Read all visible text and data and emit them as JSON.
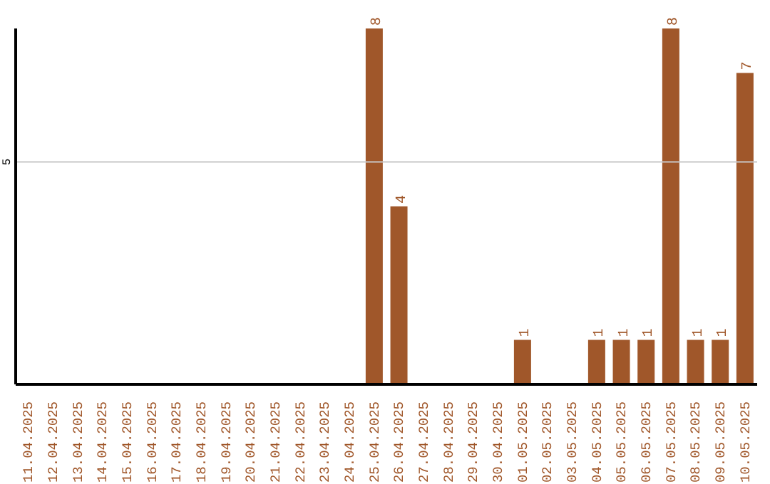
{
  "chart_data": {
    "type": "bar",
    "categories": [
      "11.04.2025",
      "12.04.2025",
      "13.04.2025",
      "14.04.2025",
      "15.04.2025",
      "16.04.2025",
      "17.04.2025",
      "18.04.2025",
      "19.04.2025",
      "20.04.2025",
      "21.04.2025",
      "22.04.2025",
      "23.04.2025",
      "24.04.2025",
      "25.04.2025",
      "26.04.2025",
      "27.04.2025",
      "28.04.2025",
      "29.04.2025",
      "30.04.2025",
      "01.05.2025",
      "02.05.2025",
      "03.05.2025",
      "04.05.2025",
      "05.05.2025",
      "06.05.2025",
      "07.05.2025",
      "08.05.2025",
      "09.05.2025",
      "10.05.2025"
    ],
    "values": [
      null,
      null,
      null,
      null,
      null,
      null,
      null,
      null,
      null,
      null,
      null,
      null,
      null,
      null,
      8,
      4,
      null,
      null,
      null,
      null,
      1,
      null,
      null,
      1,
      1,
      1,
      8,
      1,
      1,
      7
    ],
    "data_labels": true,
    "color": "#a0572a",
    "ref_lines": [
      {
        "axis": "y",
        "value": 5,
        "label": "5",
        "color": "#c8c8c8"
      }
    ]
  }
}
